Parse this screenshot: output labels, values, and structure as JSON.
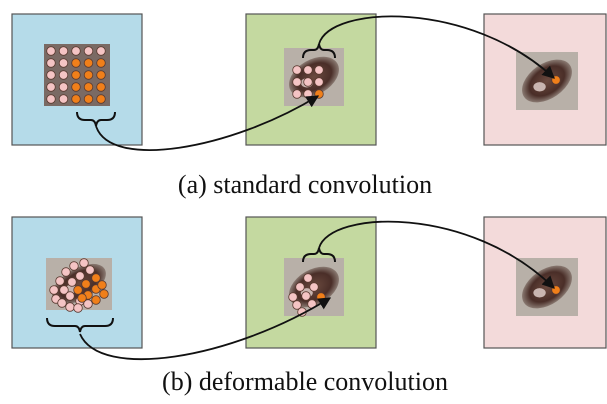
{
  "captions": {
    "standard": "(a) standard convolution",
    "deformable": "(b) deformable convolution"
  }
}
